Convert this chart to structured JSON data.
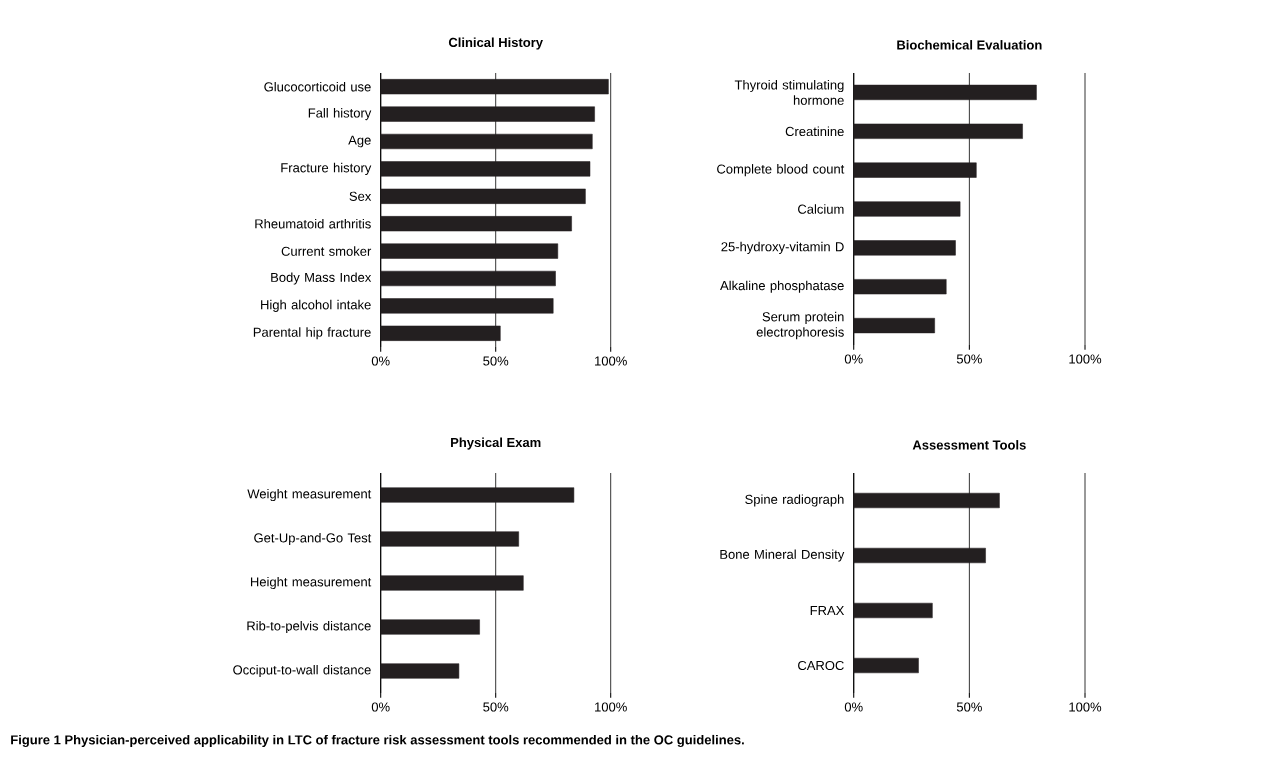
{
  "chart_data": [
    {
      "type": "bar",
      "orientation": "horizontal",
      "title": "Clinical History",
      "categories": [
        "Glucocorticoid use",
        "Fall history",
        "Age",
        "Fracture history",
        "Sex",
        "Rheumatoid arthritis",
        "Current smoker",
        "Body Mass Index",
        "High alcohol intake",
        "Parental hip fracture"
      ],
      "values": [
        99,
        93,
        92,
        91,
        89,
        83,
        77,
        76,
        75,
        52
      ],
      "color": "#231f20",
      "xlim": [
        0,
        100
      ],
      "xticks": [
        {
          "value": 0,
          "label": "0%"
        },
        {
          "value": 50,
          "label": "50%"
        },
        {
          "value": 100,
          "label": "100%"
        }
      ],
      "grid": "x",
      "annotations": [
        "Figure 1 Physician-perceived applicability in LTC of fracture risk assessment tools recommended in the OC guidelines."
      ]
    },
    {
      "type": "bar",
      "orientation": "horizontal",
      "title": "Biochemical Evaluation",
      "categories": [
        "Thyroid stimulating hormone",
        "Creatinine",
        "Complete blood count",
        "Calcium",
        "25-hydroxy-vitamin D",
        "Alkaline phosphatase",
        "Serum protein electrophoresis"
      ],
      "values": [
        79,
        73,
        53,
        46,
        44,
        40,
        35
      ],
      "color": "#231f20",
      "xlim": [
        0,
        100
      ],
      "xticks": [
        {
          "value": 0,
          "label": "0%"
        },
        {
          "value": 50,
          "label": "50%"
        },
        {
          "value": 100,
          "label": "100%"
        }
      ],
      "grid": "x"
    },
    {
      "type": "bar",
      "orientation": "horizontal",
      "title": "Physical Exam",
      "categories": [
        "Weight measurement",
        "Get-Up-and-Go Test",
        "Height measurement",
        "Rib-to-pelvis distance",
        "Occiput-to-wall distance"
      ],
      "values": [
        84,
        60,
        62,
        43,
        34
      ],
      "color": "#231f20",
      "xlim": [
        0,
        100
      ],
      "xticks": [
        {
          "value": 0,
          "label": "0%"
        },
        {
          "value": 50,
          "label": "50%"
        },
        {
          "value": 100,
          "label": "100%"
        }
      ],
      "grid": "x"
    },
    {
      "type": "bar",
      "orientation": "horizontal",
      "title": "Assessment Tools",
      "categories": [
        "Spine radiograph",
        "Bone Mineral Density",
        "FRAX",
        "CAROC"
      ],
      "values": [
        63,
        57,
        34,
        28
      ],
      "color": "#231f20",
      "xlim": [
        0,
        100
      ],
      "xticks": [
        {
          "value": 0,
          "label": "0%"
        },
        {
          "value": 50,
          "label": "50%"
        },
        {
          "value": 100,
          "label": "100%"
        }
      ],
      "grid": "x"
    }
  ]
}
